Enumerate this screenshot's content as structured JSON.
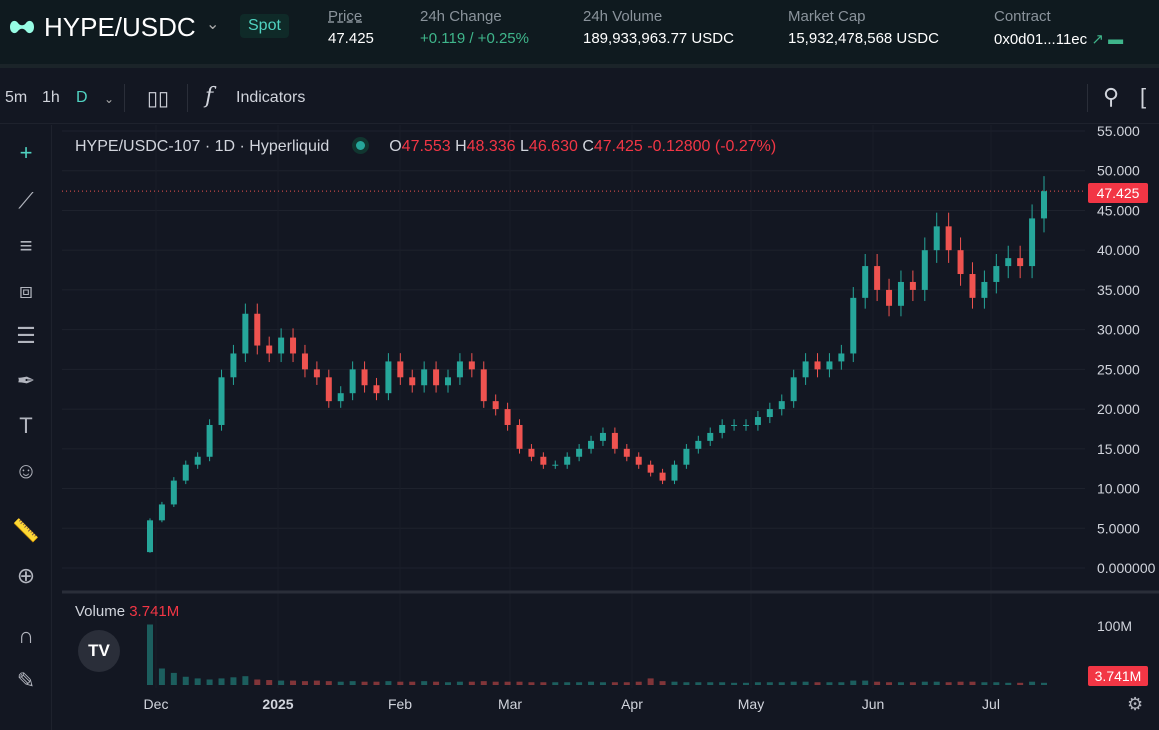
{
  "header": {
    "pair": "HYPE/USDC",
    "market_type": "Spot",
    "stats": [
      {
        "label": "Price",
        "value": "47.425"
      },
      {
        "label": "24h Change",
        "value": "+0.119 / +0.25%"
      },
      {
        "label": "24h Volume",
        "value": "189,933,963.77 USDC"
      },
      {
        "label": "Market Cap",
        "value": "15,932,478,568 USDC"
      },
      {
        "label": "Contract",
        "value": "0x0d01...11ec"
      }
    ]
  },
  "toolbar": {
    "intervals": [
      "5m",
      "1h",
      "D"
    ],
    "indicators": "Indicators"
  },
  "legend": {
    "symbol": "HYPE/USDC-107 · 1D · Hyperliquid",
    "o_label": "O",
    "o": "47.553",
    "h_label": "H",
    "h": "48.336",
    "l_label": "L",
    "l": "46.630",
    "c_label": "C",
    "c": "47.425",
    "change": "-0.12800 (-0.27%)"
  },
  "volume": {
    "label": "Volume",
    "value": "3.741M",
    "axis": "100M",
    "tag": "3.741M"
  },
  "colors": {
    "up": "#26a69a",
    "down": "#ef5350",
    "accent": "#50d2c1"
  },
  "chart_data": {
    "type": "candlestick",
    "title": "HYPE/USDC-107 · 1D · Hyperliquid",
    "yticks": [
      "55.000",
      "50.000",
      "45.000",
      "40.000",
      "35.000",
      "30.000",
      "25.000",
      "20.000",
      "15.000",
      "10.000",
      "5.0000",
      "0.000000"
    ],
    "ylim": [
      0,
      55
    ],
    "last_price": "47.425",
    "xticks": [
      "Dec",
      "2025",
      "Feb",
      "Mar",
      "Apr",
      "May",
      "Jun",
      "Jul"
    ],
    "closes": [
      6,
      8,
      11,
      13,
      14,
      18,
      24,
      27,
      32,
      28,
      27,
      29,
      27,
      25,
      24,
      21,
      22,
      25,
      23,
      22,
      26,
      24,
      23,
      25,
      23,
      24,
      26,
      25,
      21,
      20,
      18,
      15,
      14,
      13,
      13,
      14,
      15,
      16,
      17,
      15,
      14,
      13,
      12,
      11,
      13,
      15,
      16,
      17,
      18,
      18,
      18,
      19,
      20,
      21,
      24,
      26,
      25,
      26,
      27,
      34,
      38,
      35,
      33,
      36,
      35,
      40,
      43,
      40,
      37,
      34,
      36,
      38,
      39,
      38,
      44,
      47.425
    ],
    "open_first": 2,
    "volumes_m": [
      110,
      30,
      22,
      15,
      12,
      10,
      12,
      14,
      16,
      10,
      9,
      8,
      8,
      7,
      8,
      7,
      6,
      7,
      6,
      6,
      7,
      6,
      6,
      7,
      6,
      5,
      6,
      6,
      7,
      6,
      6,
      6,
      5,
      5,
      5,
      5,
      5,
      6,
      5,
      5,
      5,
      6,
      12,
      7,
      6,
      5,
      5,
      5,
      5,
      4,
      4,
      5,
      5,
      5,
      6,
      6,
      5,
      5,
      5,
      8,
      8,
      6,
      5,
      5,
      5,
      6,
      6,
      5,
      6,
      6,
      5,
      5,
      4,
      4,
      6,
      4
    ]
  }
}
